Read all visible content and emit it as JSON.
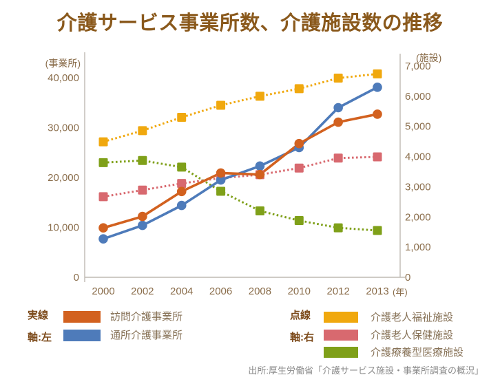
{
  "title": "介護サービス事業所数、介護施設数の推移",
  "source": "出所:厚生労働省「介護サービス施設・事業所調査の概況」",
  "colors": {
    "title": "#8A591C",
    "axis_text": "#8A6D4B",
    "axis_line": "#BFBAB2",
    "legend_key": "#7C4A1A",
    "legend_text": "#877257",
    "source_text": "#8A8A8A"
  },
  "legend": {
    "solid": {
      "key_line1": "実線",
      "key_line2": "軸:左"
    },
    "dotted": {
      "key_line1": "点線",
      "key_line2": "軸:右"
    }
  },
  "chart_data": {
    "type": "line",
    "categories": [
      "2000",
      "2002",
      "2004",
      "2006",
      "2008",
      "2010",
      "2012",
      "2013"
    ],
    "x_unit_label": "(年)",
    "grid": false,
    "legend_position": "bottom",
    "left_axis": {
      "label": "(事業所)",
      "min": 0,
      "max": 40000,
      "tick_step": 10000,
      "ticks": [
        "0",
        "10,000",
        "20,000",
        "30,000",
        "40,000"
      ]
    },
    "right_axis": {
      "label": "(施設)",
      "min": 0,
      "max": 7000,
      "tick_step": 1000,
      "ticks": [
        "0",
        "1,000",
        "2,000",
        "3,000",
        "4,000",
        "5,000",
        "6,000",
        "7,000"
      ]
    },
    "series": [
      {
        "name": "訪問介護事業所",
        "axis": "left",
        "line_style": "solid",
        "marker": "circle",
        "color": "#D2611F",
        "z": 5,
        "values": [
          9900,
          12200,
          17200,
          20900,
          20600,
          26800,
          31100,
          32700
        ]
      },
      {
        "name": "通所介護事業所",
        "axis": "left",
        "line_style": "solid",
        "marker": "circle",
        "color": "#4E7BBA",
        "z": 4,
        "values": [
          7700,
          10400,
          14400,
          19500,
          22300,
          26000,
          34000,
          38100
        ]
      },
      {
        "name": "介護老人福祉施設",
        "axis": "right",
        "line_style": "dotted",
        "marker": "square",
        "color": "#F0A80E",
        "z": 1,
        "values": [
          4490,
          4860,
          5300,
          5700,
          6000,
          6250,
          6600,
          6740
        ]
      },
      {
        "name": "介護老人保健施設",
        "axis": "right",
        "line_style": "dotted",
        "marker": "square",
        "color": "#D8696F",
        "z": 2,
        "values": [
          2670,
          2890,
          3110,
          3290,
          3400,
          3620,
          3950,
          3990
        ]
      },
      {
        "name": "介護療養型医療施設",
        "axis": "right",
        "line_style": "dotted",
        "marker": "square",
        "color": "#7FA019",
        "z": 3,
        "values": [
          3800,
          3870,
          3650,
          2850,
          2200,
          1880,
          1640,
          1550
        ]
      }
    ]
  }
}
